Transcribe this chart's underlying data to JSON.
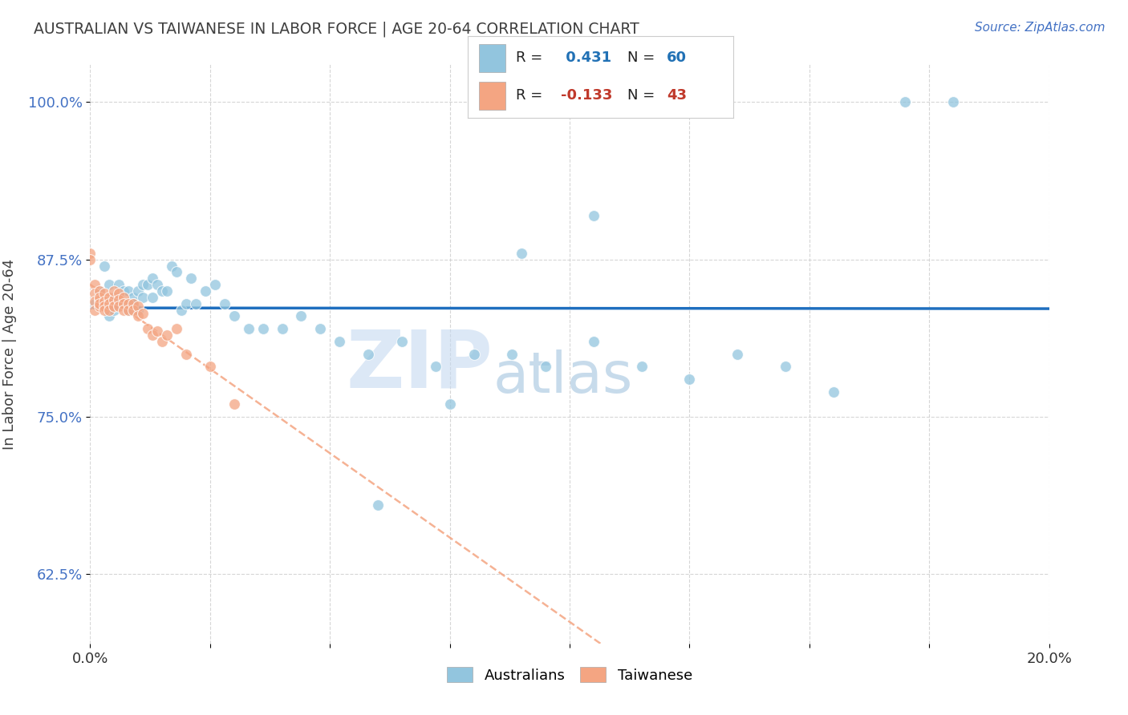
{
  "title": "AUSTRALIAN VS TAIWANESE IN LABOR FORCE | AGE 20-64 CORRELATION CHART",
  "source": "Source: ZipAtlas.com",
  "ylabel": "In Labor Force | Age 20-64",
  "xlim": [
    0.0,
    0.2
  ],
  "ylim": [
    0.57,
    1.03
  ],
  "yticks": [
    0.625,
    0.75,
    0.875,
    1.0
  ],
  "ytick_labels": [
    "62.5%",
    "75.0%",
    "87.5%",
    "100.0%"
  ],
  "xticks": [
    0.0,
    0.025,
    0.05,
    0.075,
    0.1,
    0.125,
    0.15,
    0.175,
    0.2
  ],
  "xtick_labels": [
    "0.0%",
    "",
    "",
    "",
    "",
    "",
    "",
    "",
    "20.0%"
  ],
  "R_australian": 0.431,
  "N_australian": 60,
  "R_taiwanese": -0.133,
  "N_taiwanese": 43,
  "australian_color": "#92c5de",
  "taiwanese_color": "#f4a582",
  "trend_australian_color": "#1f6fbf",
  "trend_taiwanese_color": "#f4a582",
  "background_color": "#ffffff",
  "grid_color": "#cccccc",
  "title_color": "#404040",
  "axis_label_color": "#404040",
  "ytick_color": "#4472c4",
  "source_color": "#4472c4",
  "legend_R_color_australian": "#2171b5",
  "legend_R_color_taiwanese": "#c0392b",
  "australian_x": [
    0.001,
    0.002,
    0.002,
    0.003,
    0.004,
    0.004,
    0.005,
    0.005,
    0.006,
    0.006,
    0.007,
    0.007,
    0.008,
    0.008,
    0.009,
    0.009,
    0.01,
    0.01,
    0.011,
    0.011,
    0.012,
    0.013,
    0.013,
    0.014,
    0.015,
    0.016,
    0.017,
    0.018,
    0.019,
    0.02,
    0.021,
    0.022,
    0.024,
    0.026,
    0.028,
    0.03,
    0.033,
    0.036,
    0.04,
    0.044,
    0.048,
    0.052,
    0.058,
    0.065,
    0.072,
    0.08,
    0.088,
    0.095,
    0.105,
    0.115,
    0.125,
    0.135,
    0.145,
    0.155,
    0.105,
    0.09,
    0.075,
    0.06,
    0.17,
    0.18
  ],
  "australian_y": [
    0.84,
    0.85,
    0.84,
    0.87,
    0.83,
    0.855,
    0.845,
    0.835,
    0.84,
    0.855,
    0.85,
    0.84,
    0.85,
    0.835,
    0.845,
    0.84,
    0.85,
    0.835,
    0.845,
    0.855,
    0.855,
    0.86,
    0.845,
    0.855,
    0.85,
    0.85,
    0.87,
    0.865,
    0.835,
    0.84,
    0.86,
    0.84,
    0.85,
    0.855,
    0.84,
    0.83,
    0.82,
    0.82,
    0.82,
    0.83,
    0.82,
    0.81,
    0.8,
    0.81,
    0.79,
    0.8,
    0.8,
    0.79,
    0.81,
    0.79,
    0.78,
    0.8,
    0.79,
    0.77,
    0.91,
    0.88,
    0.76,
    0.68,
    1.0,
    1.0
  ],
  "taiwanese_x": [
    0.0,
    0.0,
    0.001,
    0.001,
    0.001,
    0.001,
    0.002,
    0.002,
    0.002,
    0.002,
    0.002,
    0.003,
    0.003,
    0.003,
    0.003,
    0.004,
    0.004,
    0.004,
    0.005,
    0.005,
    0.005,
    0.006,
    0.006,
    0.006,
    0.007,
    0.007,
    0.007,
    0.008,
    0.008,
    0.009,
    0.009,
    0.01,
    0.01,
    0.011,
    0.012,
    0.013,
    0.014,
    0.015,
    0.016,
    0.018,
    0.02,
    0.025,
    0.03
  ],
  "taiwanese_y": [
    0.88,
    0.875,
    0.855,
    0.848,
    0.842,
    0.835,
    0.85,
    0.843,
    0.838,
    0.845,
    0.84,
    0.848,
    0.842,
    0.838,
    0.835,
    0.845,
    0.84,
    0.835,
    0.843,
    0.838,
    0.85,
    0.848,
    0.843,
    0.838,
    0.845,
    0.84,
    0.835,
    0.84,
    0.835,
    0.84,
    0.835,
    0.838,
    0.83,
    0.832,
    0.82,
    0.815,
    0.818,
    0.81,
    0.815,
    0.82,
    0.8,
    0.79,
    0.76
  ],
  "watermark_zip": "ZIP",
  "watermark_atlas": "atlas",
  "watermark_color_zip": "#c5d9f0",
  "watermark_color_atlas": "#90b8d8"
}
